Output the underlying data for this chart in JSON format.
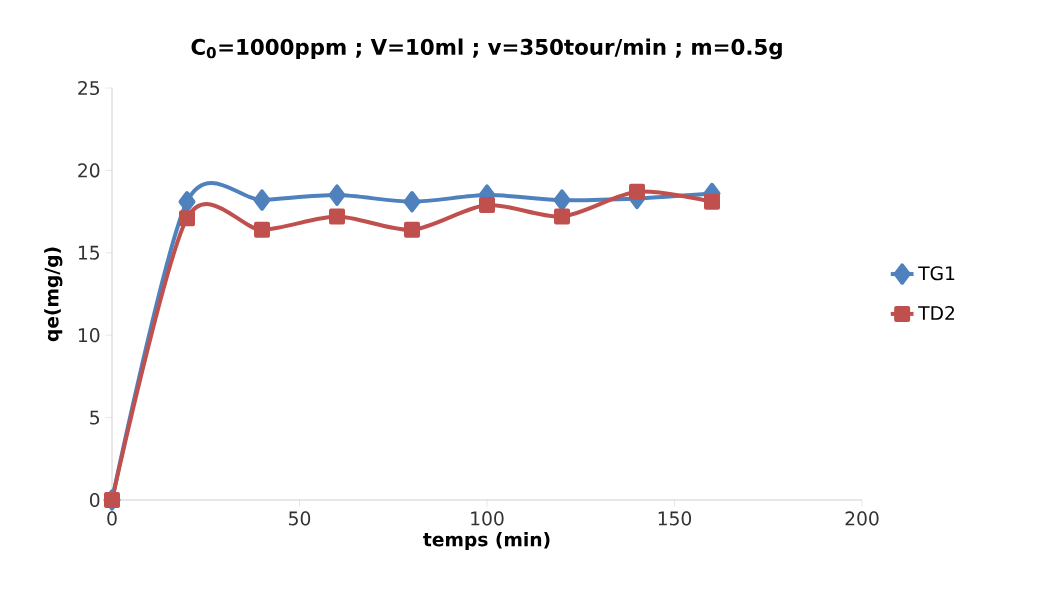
{
  "chart_data": {
    "type": "line",
    "title": "C$_{0}$=1000ppm ; V=10ml ; v=350tour/min ; m=0.5g",
    "xlabel": "temps (min)",
    "ylabel": "qe(mg/g)",
    "x": [
      0,
      20,
      40,
      60,
      80,
      100,
      120,
      140,
      160
    ],
    "series": [
      {
        "name": "TG1",
        "color": "#4f81bd",
        "marker": "diamond",
        "values": [
          0,
          18.1,
          18.2,
          18.5,
          18.1,
          18.5,
          18.2,
          18.3,
          18.6
        ]
      },
      {
        "name": "TD2",
        "color": "#c0504d",
        "marker": "square",
        "values": [
          0,
          17.1,
          16.4,
          17.2,
          16.4,
          17.9,
          17.2,
          18.7,
          18.1
        ]
      }
    ],
    "xlim": [
      0,
      200
    ],
    "xticks": [
      0,
      50,
      100,
      150,
      200
    ],
    "ylim": [
      0,
      25
    ],
    "yticks": [
      0,
      5,
      10,
      15,
      20,
      25
    ],
    "grid": false,
    "legend": "right"
  }
}
